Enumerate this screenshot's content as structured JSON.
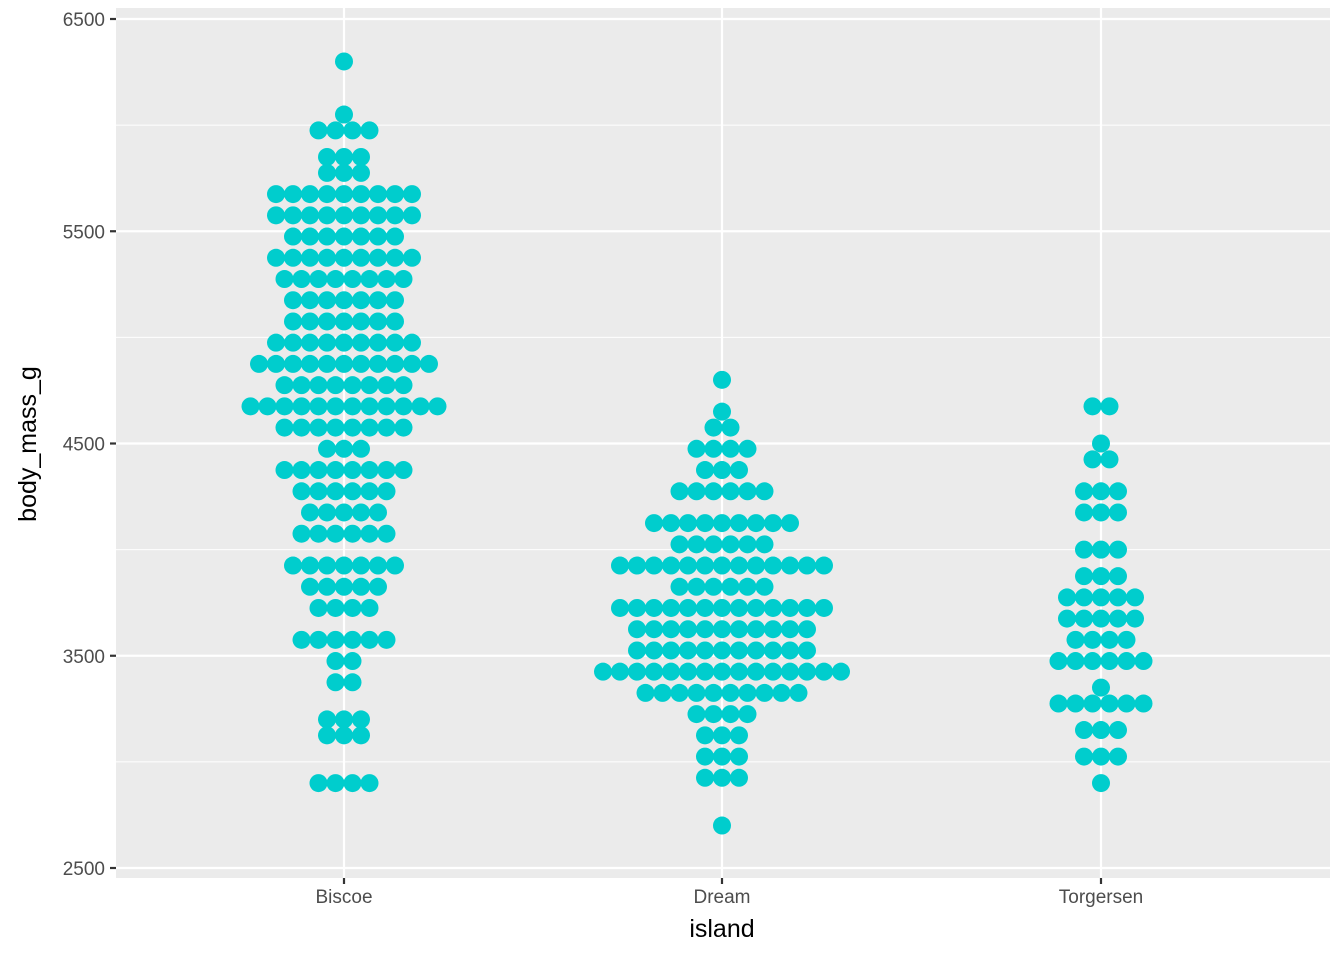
{
  "chart_data": {
    "type": "scatter",
    "subtype": "dotplot-beeswarm",
    "title": "",
    "xlabel": "island",
    "ylabel": "body_mass_g",
    "categories": [
      "Biscoe",
      "Dream",
      "Torgersen"
    ],
    "ylim": [
      2500,
      6500
    ],
    "yticks": [
      2500,
      3500,
      4500,
      5500,
      6500
    ],
    "ytick_labels": [
      "2500",
      "3500",
      "4500",
      "5500",
      "6500"
    ],
    "grid": true,
    "legend": "none",
    "colors": {
      "point": "#00CDCD",
      "panel": "#EBEBEB",
      "grid": "#FFFFFF"
    },
    "series": [
      {
        "category": "Biscoe",
        "bins": [
          {
            "y": 6300,
            "n": 1
          },
          {
            "y": 6050,
            "n": 1
          },
          {
            "y": 5975,
            "n": 4
          },
          {
            "y": 5850,
            "n": 3
          },
          {
            "y": 5775,
            "n": 3
          },
          {
            "y": 5675,
            "n": 9
          },
          {
            "y": 5575,
            "n": 9
          },
          {
            "y": 5475,
            "n": 7
          },
          {
            "y": 5375,
            "n": 9
          },
          {
            "y": 5275,
            "n": 8
          },
          {
            "y": 5175,
            "n": 7
          },
          {
            "y": 5075,
            "n": 7
          },
          {
            "y": 4975,
            "n": 9
          },
          {
            "y": 4875,
            "n": 11
          },
          {
            "y": 4775,
            "n": 8
          },
          {
            "y": 4675,
            "n": 12
          },
          {
            "y": 4575,
            "n": 8
          },
          {
            "y": 4475,
            "n": 3
          },
          {
            "y": 4375,
            "n": 8
          },
          {
            "y": 4275,
            "n": 6
          },
          {
            "y": 4175,
            "n": 5
          },
          {
            "y": 4075,
            "n": 6
          },
          {
            "y": 3925,
            "n": 7
          },
          {
            "y": 3825,
            "n": 5
          },
          {
            "y": 3725,
            "n": 4
          },
          {
            "y": 3575,
            "n": 6
          },
          {
            "y": 3475,
            "n": 2
          },
          {
            "y": 3375,
            "n": 2
          },
          {
            "y": 3200,
            "n": 3
          },
          {
            "y": 3125,
            "n": 3
          },
          {
            "y": 2900,
            "n": 4
          }
        ]
      },
      {
        "category": "Dream",
        "bins": [
          {
            "y": 4800,
            "n": 1
          },
          {
            "y": 4650,
            "n": 1
          },
          {
            "y": 4575,
            "n": 2
          },
          {
            "y": 4475,
            "n": 4
          },
          {
            "y": 4375,
            "n": 3
          },
          {
            "y": 4275,
            "n": 6
          },
          {
            "y": 4125,
            "n": 9
          },
          {
            "y": 4025,
            "n": 6
          },
          {
            "y": 3925,
            "n": 13
          },
          {
            "y": 3825,
            "n": 6
          },
          {
            "y": 3725,
            "n": 13
          },
          {
            "y": 3625,
            "n": 11
          },
          {
            "y": 3525,
            "n": 11
          },
          {
            "y": 3425,
            "n": 15
          },
          {
            "y": 3325,
            "n": 10
          },
          {
            "y": 3225,
            "n": 4
          },
          {
            "y": 3125,
            "n": 3
          },
          {
            "y": 3025,
            "n": 3
          },
          {
            "y": 2925,
            "n": 3
          },
          {
            "y": 2700,
            "n": 1
          }
        ]
      },
      {
        "category": "Torgersen",
        "bins": [
          {
            "y": 4675,
            "n": 2
          },
          {
            "y": 4500,
            "n": 1
          },
          {
            "y": 4425,
            "n": 2
          },
          {
            "y": 4275,
            "n": 3
          },
          {
            "y": 4175,
            "n": 3
          },
          {
            "y": 4000,
            "n": 3
          },
          {
            "y": 3875,
            "n": 3
          },
          {
            "y": 3775,
            "n": 5
          },
          {
            "y": 3675,
            "n": 5
          },
          {
            "y": 3575,
            "n": 4
          },
          {
            "y": 3475,
            "n": 6
          },
          {
            "y": 3350,
            "n": 1
          },
          {
            "y": 3275,
            "n": 6
          },
          {
            "y": 3150,
            "n": 3
          },
          {
            "y": 3025,
            "n": 3
          },
          {
            "y": 2900,
            "n": 1
          }
        ]
      }
    ]
  }
}
